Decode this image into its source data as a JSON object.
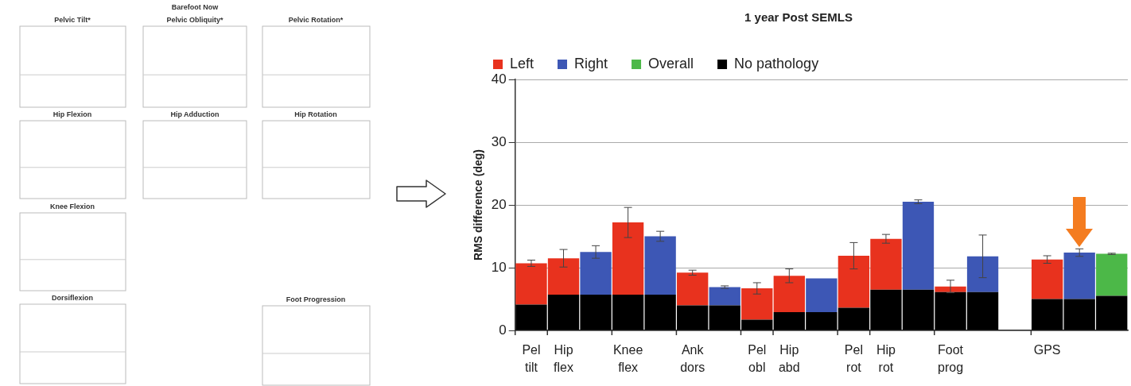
{
  "chart_data": {
    "type": "bar",
    "title": "1 year Post SEMLS",
    "ylabel": "RMS difference (deg)",
    "categories": [
      "Pel tilt",
      "Hip flex",
      null,
      "Knee flex",
      null,
      "Ank dors",
      null,
      "Pel obl",
      "Hip abd",
      null,
      "Pel rot",
      "Hip rot",
      null,
      "Foot prog",
      null,
      null,
      "GPS",
      null,
      null
    ],
    "stacked": true,
    "series": [
      {
        "name": "No pathology",
        "color": "#000000",
        "values": [
          4.1,
          5.7,
          5.7,
          5.7,
          5.7,
          4.0,
          4.0,
          1.7,
          2.9,
          2.9,
          3.6,
          6.5,
          6.5,
          6.1,
          6.1,
          null,
          5.0,
          5.0,
          5.5
        ]
      },
      {
        "name": "Left",
        "color": "#e8321e",
        "values": [
          6.6,
          5.8,
          null,
          11.5,
          null,
          5.2,
          null,
          5.0,
          5.8,
          null,
          8.3,
          8.1,
          null,
          0.9,
          null,
          null,
          6.3,
          null,
          null
        ],
        "errors": [
          0.5,
          1.4,
          null,
          2.4,
          null,
          0.4,
          null,
          0.9,
          1.1,
          null,
          2.1,
          0.7,
          null,
          1.0,
          null,
          null,
          0.6,
          null,
          null
        ]
      },
      {
        "name": "Right",
        "color": "#3d57b5",
        "values": [
          null,
          null,
          6.8,
          null,
          9.3,
          null,
          2.9,
          null,
          null,
          5.4,
          null,
          null,
          14.0,
          null,
          5.7,
          null,
          null,
          7.4,
          null
        ],
        "errors": [
          null,
          null,
          1.0,
          null,
          0.8,
          null,
          0.2,
          null,
          null,
          null,
          null,
          null,
          0.3,
          null,
          3.4,
          null,
          null,
          0.6,
          null
        ]
      },
      {
        "name": "Overall",
        "color": "#4cb848",
        "values": [
          null,
          null,
          null,
          null,
          null,
          null,
          null,
          null,
          null,
          null,
          null,
          null,
          null,
          null,
          null,
          null,
          null,
          null,
          6.7
        ],
        "errors": [
          null,
          null,
          null,
          null,
          null,
          null,
          null,
          null,
          null,
          null,
          null,
          null,
          null,
          null,
          null,
          null,
          null,
          null,
          0.1
        ]
      }
    ],
    "ylim": [
      0,
      40
    ],
    "yticks": [
      0,
      10,
      20,
      30,
      40
    ],
    "grid": "y",
    "legend": "top left",
    "annotations": [
      "Pelvic Tilt*",
      "Barefoot Now",
      "Pelvic Obliquity*",
      "Pelvic Rotation*",
      "Hip Flexion",
      "Hip Adduction",
      "Hip Rotation",
      "Knee Flexion",
      "Dorsiflexion",
      "Foot Progression"
    ]
  }
}
